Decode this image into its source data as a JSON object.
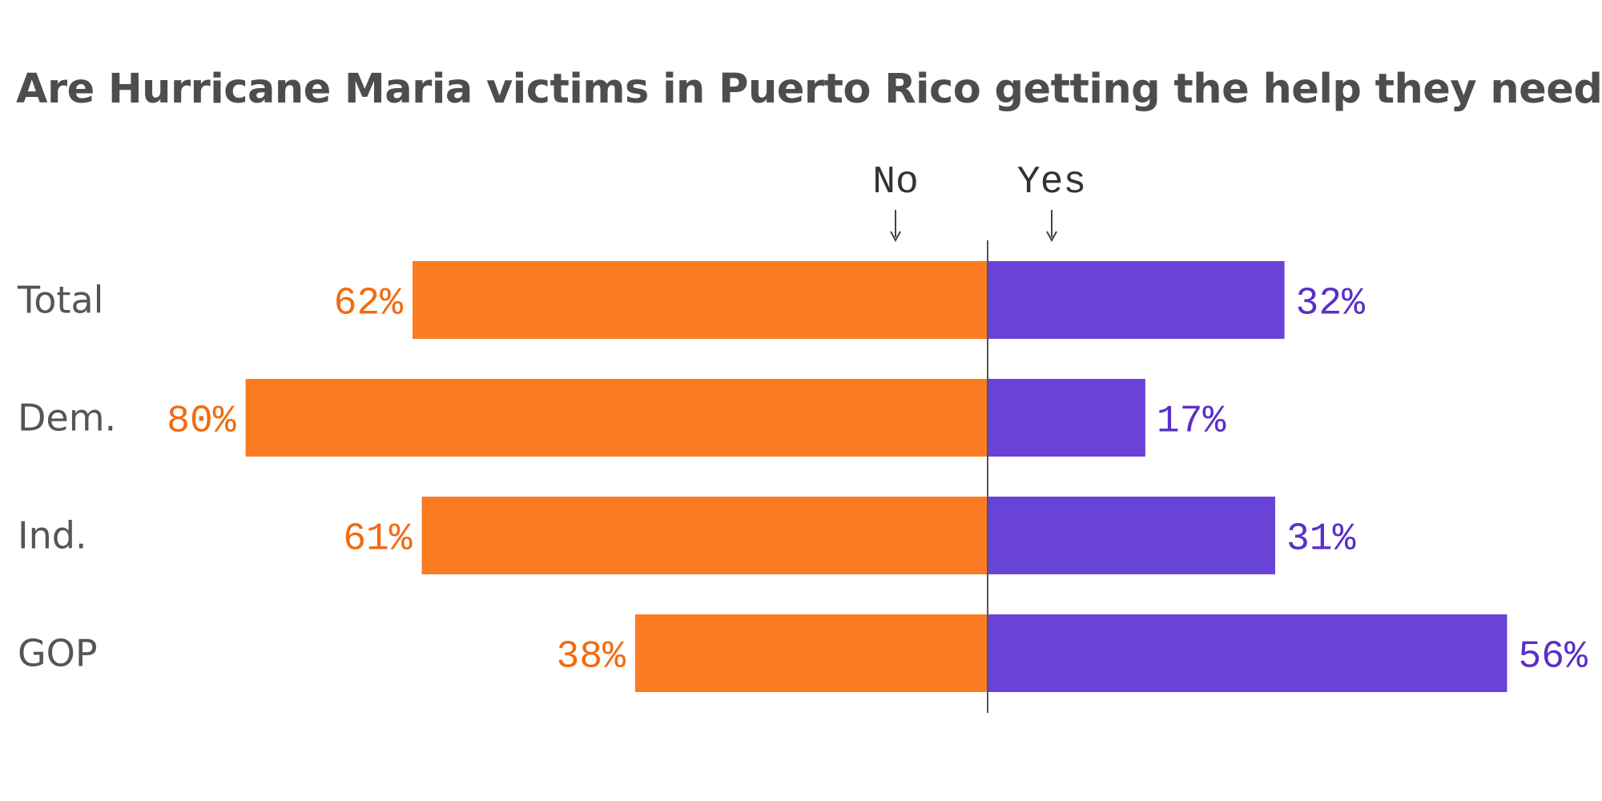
{
  "chart_data": {
    "type": "bar",
    "orientation": "horizontal-diverging",
    "title": "Are Hurricane Maria victims in Puerto Rico getting the help they need?",
    "categories": [
      "Total",
      "Dem.",
      "Ind.",
      "GOP"
    ],
    "series": [
      {
        "name": "No",
        "values": [
          62,
          80,
          61,
          38
        ],
        "labels": [
          "62%",
          "80%",
          "61%",
          "38%"
        ],
        "color": "#fb7b22"
      },
      {
        "name": "Yes",
        "values": [
          32,
          17,
          31,
          56
        ],
        "labels": [
          "32%",
          "17%",
          "31%",
          "56%"
        ],
        "color": "#6843d6"
      }
    ],
    "label_colors": {
      "No": "#f26b10",
      "Yes": "#5a2fc7"
    },
    "unit": "%",
    "grid": false
  }
}
